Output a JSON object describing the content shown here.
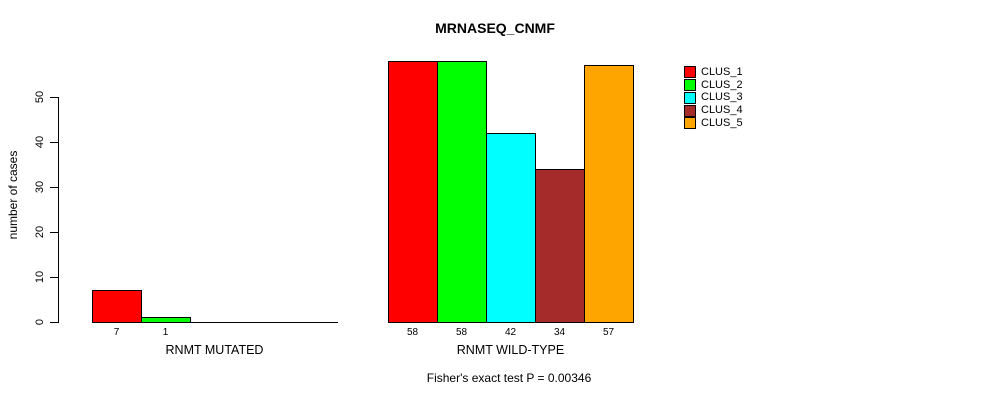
{
  "chart_data": {
    "type": "bar",
    "title": "MRNASEQ_CNMF",
    "ylabel": "number of cases",
    "subtitle": "Fisher's exact test P = 0.00346",
    "categories": [
      "RNMT MUTATED",
      "RNMT WILD-TYPE"
    ],
    "series": [
      {
        "name": "CLUS_1",
        "color": "#FF0000",
        "values": [
          7,
          58
        ]
      },
      {
        "name": "CLUS_2",
        "color": "#00FF00",
        "values": [
          1,
          58
        ]
      },
      {
        "name": "CLUS_3",
        "color": "#00FFFF",
        "values": [
          0,
          42
        ]
      },
      {
        "name": "CLUS_4",
        "color": "#A52A2A",
        "values": [
          0,
          34
        ]
      },
      {
        "name": "CLUS_5",
        "color": "#FFA500",
        "values": [
          0,
          57
        ]
      }
    ],
    "yticks": [
      0,
      10,
      20,
      30,
      40,
      50
    ],
    "ylim": [
      0,
      58
    ],
    "grid": false,
    "legend_position": "top-right",
    "bar_value_labels_shown": true,
    "zero_bars_drawn_as_baseline": true,
    "axis_color": "#000000",
    "background_color": "#FFFFFF"
  }
}
